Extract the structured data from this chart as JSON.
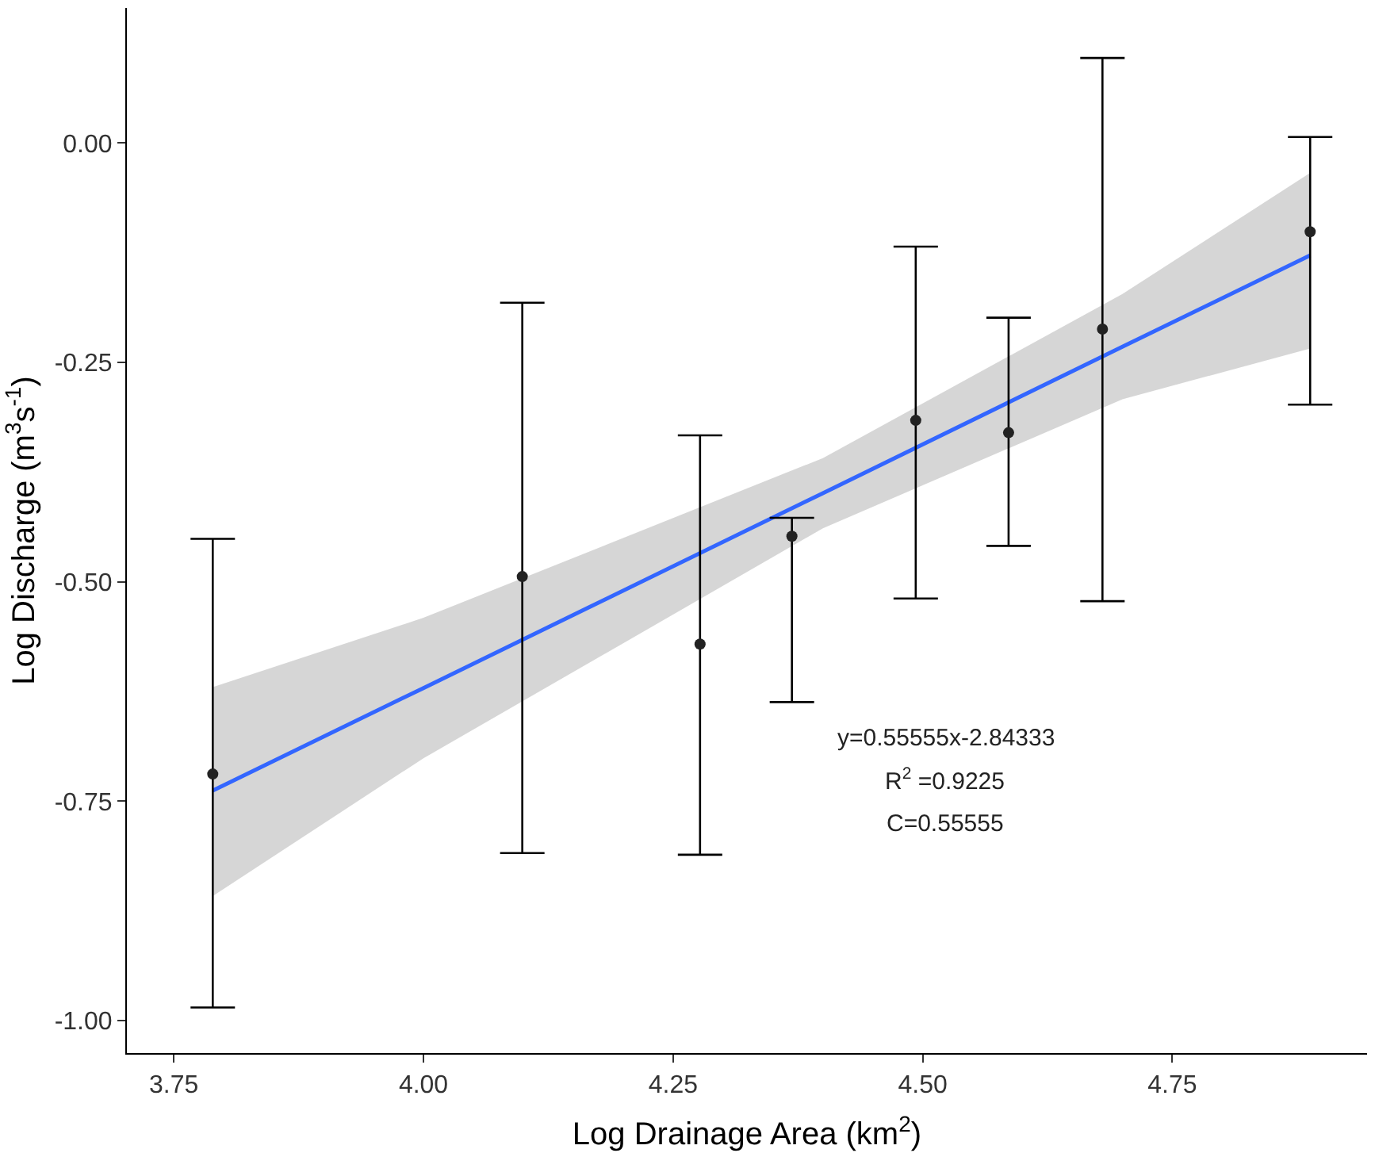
{
  "chart_data": {
    "type": "scatter",
    "xlabel": "Log Drainage Area (km$^{2}$)",
    "ylabel": "Log Discharge (m$^{3}$s$^{-1}$)",
    "x": [
      3.789,
      4.099,
      4.277,
      4.369,
      4.493,
      4.586,
      4.68,
      4.888
    ],
    "series": [
      {
        "marker": "circle",
        "color": "#222222",
        "values": [
          -0.719,
          -0.494,
          -0.571,
          -0.448,
          -0.316,
          -0.33,
          -0.212,
          -0.101
        ],
        "errors": [
          [
            -0.985,
            -0.451
          ],
          [
            -0.809,
            -0.182
          ],
          [
            -0.811,
            -0.333
          ],
          [
            -0.637,
            -0.427
          ],
          [
            -0.519,
            -0.118
          ],
          [
            -0.459,
            -0.199
          ],
          [
            -0.522,
            0.097
          ],
          [
            -0.298,
            0.007
          ]
        ]
      },
      {
        "type": "line",
        "marker": "none",
        "color": "#3366ff",
        "x": [
          3.789,
          4.0,
          4.4,
          4.7,
          4.888
        ],
        "values": [
          -0.738,
          -0.621,
          -0.399,
          -0.232,
          -0.128
        ],
        "lower": [
          -0.858,
          -0.701,
          -0.439,
          -0.292,
          -0.234
        ],
        "upper": [
          -0.62,
          -0.541,
          -0.359,
          -0.172,
          -0.034
        ]
      }
    ],
    "xlim": [
      3.703,
      4.945
    ],
    "ylim": [
      -1.037,
      0.154
    ],
    "xticks": [
      3.75,
      {
        "value": 4,
        "label": "4.00"
      },
      4.25,
      {
        "value": 4.5,
        "label": "4.50"
      },
      4.75
    ],
    "yticks": [
      {
        "value": -1,
        "label": "-1.00"
      },
      -0.75,
      {
        "value": -0.5,
        "label": "-0.50"
      },
      -0.25,
      {
        "value": 0,
        "label": "0.00"
      }
    ],
    "annotations": [
      "y=0.55555x-2.84333",
      "R$^{2}$ =0.9225",
      "C=0.55555"
    ],
    "line_style": "solid"
  }
}
